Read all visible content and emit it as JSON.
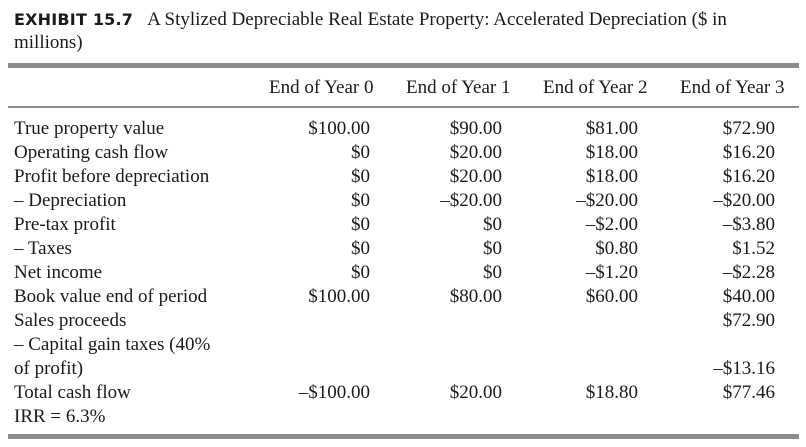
{
  "exhibit": {
    "label": "EXHIBIT 15.7",
    "title": "A Stylized Depreciable Real Estate Property: Accelerated Depreciation ($ in millions)"
  },
  "columns": [
    "End of Year 0",
    "End of Year 1",
    "End of Year 2",
    "End of Year 3"
  ],
  "rows": [
    {
      "label": "True property value",
      "values": [
        "$100.00",
        "$90.00",
        "$81.00",
        "$72.90"
      ]
    },
    {
      "label": "Operating cash flow",
      "values": [
        "$0",
        "$20.00",
        "$18.00",
        "$16.20"
      ]
    },
    {
      "label": "Profit before depreciation",
      "values": [
        "$0",
        "$20.00",
        "$18.00",
        "$16.20"
      ]
    },
    {
      "label": "– Depreciation",
      "values": [
        "$0",
        "–$20.00",
        "–$20.00",
        "–$20.00"
      ]
    },
    {
      "label": "Pre-tax profit",
      "values": [
        "$0",
        "$0",
        "–$2.00",
        "–$3.80"
      ]
    },
    {
      "label": "– Taxes",
      "values": [
        "$0",
        "$0",
        "$0.80",
        "$1.52"
      ]
    },
    {
      "label": "Net income",
      "values": [
        "$0",
        "$0",
        "–$1.20",
        "–$2.28"
      ]
    },
    {
      "label": "Book value end of period",
      "values": [
        "$100.00",
        "$80.00",
        "$60.00",
        "$40.00"
      ]
    },
    {
      "label": "Sales proceeds",
      "values": [
        "",
        "",
        "",
        "$72.90"
      ]
    },
    {
      "label": "– Capital gain taxes (40%",
      "values": [
        "",
        "",
        "",
        ""
      ]
    },
    {
      "label": "  of profit)",
      "values": [
        "",
        "",
        "",
        "–$13.16"
      ]
    },
    {
      "label": "Total cash flow",
      "values": [
        "–$100.00",
        "$20.00",
        "$18.80",
        "$77.46"
      ]
    },
    {
      "label": "IRR = 6.3%",
      "values": [
        "",
        "",
        "",
        ""
      ]
    }
  ]
}
